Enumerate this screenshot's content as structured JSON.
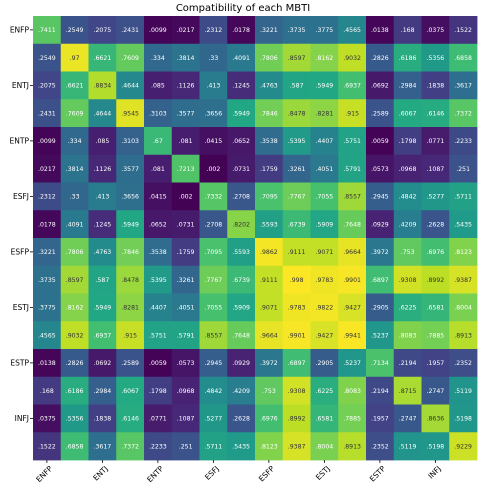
{
  "chart_data": {
    "type": "heatmap",
    "title": "Compatibility of each MBTI",
    "row_labels": [
      "ENFP",
      "",
      "ENTJ",
      "",
      "ENTP",
      "",
      "ESFJ",
      "",
      "ESFP",
      "",
      "ESTJ",
      "",
      "ESTP",
      "",
      "INFJ",
      ""
    ],
    "col_labels": [
      "ENFP",
      "",
      "ENTJ",
      "",
      "ENTP",
      "",
      "ESFJ",
      "",
      "ESFP",
      "",
      "ESTJ",
      "",
      "ESTP",
      "",
      "INFJ",
      ""
    ],
    "value_range": [
      0,
      1
    ],
    "colormap": "viridis",
    "grid": false,
    "values": [
      [
        0.7411,
        0.2549,
        0.2075,
        0.2431,
        0.0099,
        0.0217,
        0.2312,
        0.0178,
        0.3221,
        0.3735,
        0.3775,
        0.4565,
        0.0138,
        0.168,
        0.0375,
        0.1522
      ],
      [
        0.2549,
        0.97,
        0.6621,
        0.7609,
        0.334,
        0.3814,
        0.33,
        0.4091,
        0.7806,
        0.8597,
        0.8162,
        0.9032,
        0.2826,
        0.6186,
        0.5356,
        0.6858
      ],
      [
        0.2075,
        0.6621,
        0.8834,
        0.4644,
        0.085,
        0.1126,
        0.413,
        0.1245,
        0.4763,
        0.587,
        0.5949,
        0.6937,
        0.0692,
        0.2984,
        0.1838,
        0.3617
      ],
      [
        0.2431,
        0.7609,
        0.4644,
        0.9545,
        0.3103,
        0.3577,
        0.3656,
        0.5949,
        0.7846,
        0.8478,
        0.8281,
        0.915,
        0.2589,
        0.6067,
        0.6146,
        0.7372
      ],
      [
        0.0099,
        0.334,
        0.085,
        0.3103,
        0.67,
        0.081,
        0.0415,
        0.0652,
        0.3538,
        0.5395,
        0.4407,
        0.5751,
        0.0059,
        0.1798,
        0.0771,
        0.2233
      ],
      [
        0.0217,
        0.3814,
        0.1126,
        0.3577,
        0.081,
        0.7213,
        0.002,
        0.0731,
        0.1759,
        0.3261,
        0.4051,
        0.5791,
        0.0573,
        0.0968,
        0.1087,
        0.251
      ],
      [
        0.2312,
        0.33,
        0.413,
        0.3656,
        0.0415,
        0.002,
        0.7332,
        0.2708,
        0.7095,
        0.7767,
        0.7055,
        0.8557,
        0.2945,
        0.4842,
        0.5277,
        0.5711
      ],
      [
        0.0178,
        0.4091,
        0.1245,
        0.5949,
        0.0652,
        0.0731,
        0.2708,
        0.8202,
        0.5593,
        0.6739,
        0.5909,
        0.7648,
        0.0929,
        0.4209,
        0.2628,
        0.5435
      ],
      [
        0.3221,
        0.7806,
        0.4763,
        0.7846,
        0.3538,
        0.1759,
        0.7095,
        0.5593,
        0.9862,
        0.9111,
        0.9071,
        0.9664,
        0.3972,
        0.753,
        0.6976,
        0.8123
      ],
      [
        0.3735,
        0.8597,
        0.587,
        0.8478,
        0.5395,
        0.3261,
        0.7767,
        0.6739,
        0.9111,
        0.998,
        0.9783,
        0.9901,
        0.6897,
        0.9308,
        0.8992,
        0.9387
      ],
      [
        0.3775,
        0.8162,
        0.5949,
        0.8281,
        0.4407,
        0.4051,
        0.7055,
        0.5909,
        0.9071,
        0.9783,
        0.9822,
        0.9427,
        0.2905,
        0.6225,
        0.6581,
        0.8004
      ],
      [
        0.4565,
        0.9032,
        0.6937,
        0.915,
        0.5751,
        0.5791,
        0.8557,
        0.7648,
        0.9664,
        0.9901,
        0.9427,
        0.9941,
        0.5237,
        0.8083,
        0.7885,
        0.8913
      ],
      [
        0.0138,
        0.2826,
        0.0692,
        0.2589,
        0.0059,
        0.0573,
        0.2945,
        0.0929,
        0.3972,
        0.6897,
        0.2905,
        0.5237,
        0.7134,
        0.2194,
        0.1957,
        0.2352
      ],
      [
        0.168,
        0.6186,
        0.2984,
        0.6067,
        0.1798,
        0.0968,
        0.4842,
        0.4209,
        0.753,
        0.9308,
        0.6225,
        0.8083,
        0.2194,
        0.8715,
        0.2747,
        0.5119
      ],
      [
        0.0375,
        0.5356,
        0.1838,
        0.6146,
        0.0771,
        0.1087,
        0.5277,
        0.2628,
        0.6976,
        0.8992,
        0.6581,
        0.7885,
        0.1957,
        0.2747,
        0.8636,
        0.5198
      ],
      [
        0.1522,
        0.6858,
        0.3617,
        0.7372,
        0.2233,
        0.251,
        0.5711,
        0.5435,
        0.8123,
        0.9387,
        0.8004,
        0.8913,
        0.2352,
        0.5119,
        0.5198,
        0.9229
      ]
    ]
  }
}
